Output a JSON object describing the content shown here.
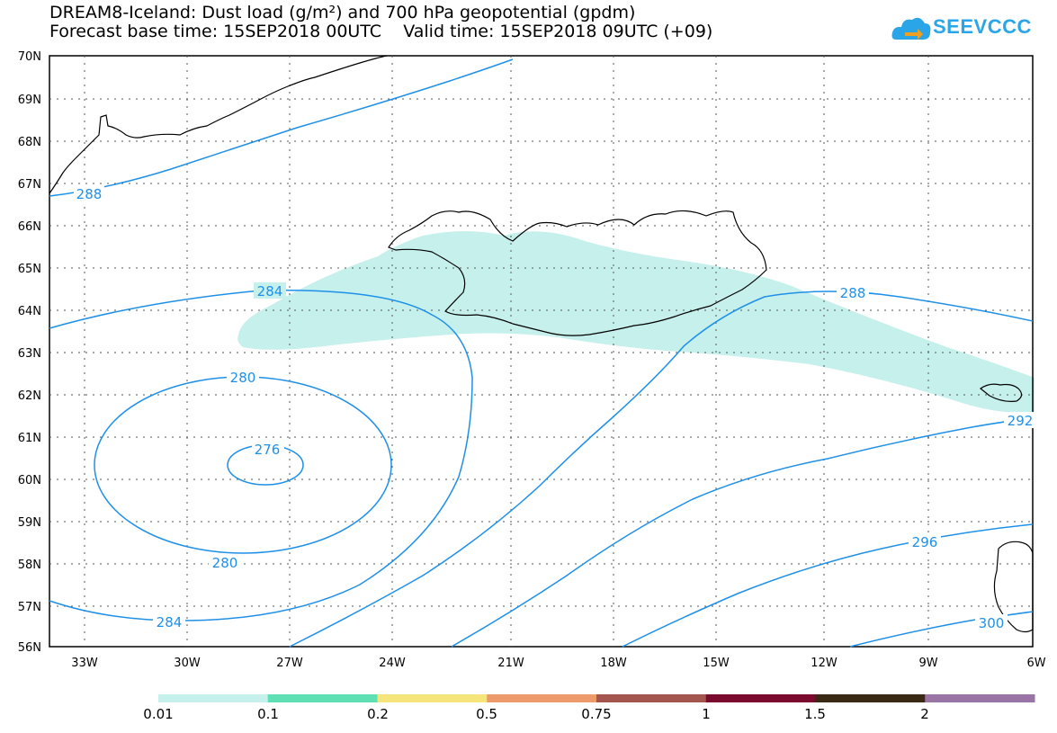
{
  "header": {
    "title": "DREAM8-Iceland: Dust load (g/m²) and 700 hPa geopotential (gpdm)",
    "forecast_line": "Forecast base time: 15SEP2018 00UTC    Valid time: 15SEP2018 09UTC (+09)"
  },
  "logo": {
    "text": "SEEVCCC",
    "color": "#2aa6e8"
  },
  "map": {
    "lon_labels": [
      "33W",
      "30W",
      "27W",
      "24W",
      "21W",
      "18W",
      "15W",
      "12W",
      "9W",
      "6W"
    ],
    "lat_labels": [
      "70N",
      "69N",
      "68N",
      "67N",
      "66N",
      "65N",
      "64N",
      "63N",
      "62N",
      "61N",
      "60N",
      "59N",
      "58N",
      "57N",
      "56N"
    ],
    "contour_labels": [
      "288",
      "284",
      "280",
      "276",
      "280",
      "284",
      "288",
      "292",
      "296",
      "300"
    ],
    "contour_color": "#1e90e8",
    "dust_fill_color": "#c6f0ec"
  },
  "colorbar": {
    "labels": [
      "0.01",
      "0.1",
      "0.2",
      "0.5",
      "0.75",
      "1",
      "1.5",
      "2"
    ],
    "colors": [
      "#c6f0ec",
      "#5ee0b4",
      "#f5e57a",
      "#ee9a6a",
      "#a4564e",
      "#7a0a2e",
      "#3a2a14",
      "#9a74a4"
    ]
  }
}
